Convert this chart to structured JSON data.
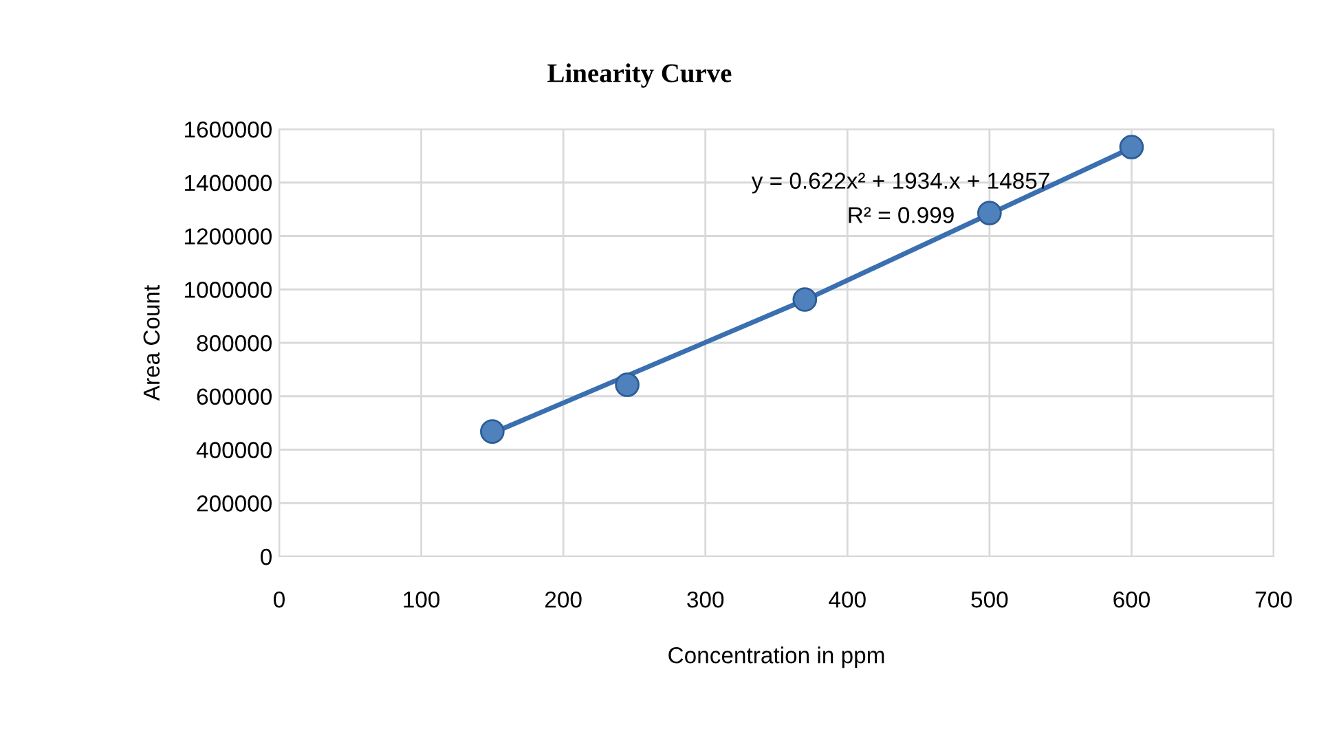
{
  "chart_data": {
    "type": "scatter",
    "title": "Linearity Curve",
    "xlabel": "Concentration in ppm",
    "ylabel": "Area Count",
    "annotations": [
      "y = 0.622x² + 1934.x + 14857",
      "R² = 0.999"
    ],
    "series": [
      {
        "type": "line",
        "color": "#3a6fb0",
        "x": [
          150,
          370,
          600
        ],
        "values": [
          462000,
          960000,
          1530000
        ],
        "marker": "none",
        "line_style": "solid"
      },
      {
        "color": "#4f81bd",
        "x": [
          150,
          245,
          370,
          500,
          600
        ],
        "values": [
          468000,
          643000,
          962000,
          1286000,
          1533000
        ],
        "marker": "circle"
      }
    ],
    "xlim": [
      0,
      700
    ],
    "xticks": [
      0,
      100,
      200,
      300,
      400,
      500,
      600,
      700
    ],
    "ylim": [
      0,
      1600000
    ],
    "yticks": [
      0,
      200000,
      400000,
      600000,
      800000,
      1000000,
      1200000,
      1400000,
      1600000
    ],
    "grid": true,
    "legend": false
  }
}
